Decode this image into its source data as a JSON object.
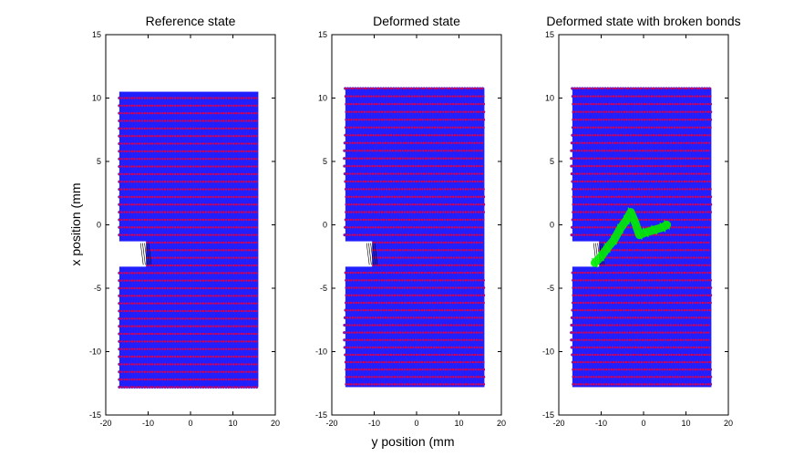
{
  "figure": {
    "xlabel": "y position (mm",
    "ylabel": "x position (mm"
  },
  "colors": {
    "node_fill": "#e0004a",
    "bond": "#2020ff",
    "broken_bond": "#00ee00",
    "crack_line": "#000000"
  },
  "chart_data": [
    {
      "type": "scatter",
      "title": "Reference state",
      "xlim": [
        -20,
        20
      ],
      "ylim": [
        -15,
        15
      ],
      "xticks": [
        -20,
        -10,
        0,
        10,
        20
      ],
      "yticks": [
        -15,
        -10,
        -5,
        0,
        5,
        10,
        15
      ],
      "grid": false,
      "series": [
        {
          "marker": "circle",
          "grid_spacing": 0.6,
          "region": {
            "y_range": [
              -16.8,
              16.0
            ],
            "x_range": [
              -12.8,
              10.5
            ]
          },
          "notch": {
            "opening_y": -17.0,
            "tip_y": -10.5,
            "x_range": [
              -3.3,
              -1.3
            ]
          }
        }
      ]
    },
    {
      "type": "scatter",
      "title": "Deformed state",
      "xlim": [
        -20,
        20
      ],
      "ylim": [
        -15,
        15
      ],
      "xticks": [
        -20,
        -10,
        0,
        10,
        20
      ],
      "yticks": [
        -15,
        -10,
        -5,
        0,
        5,
        10,
        15
      ],
      "grid": false,
      "series": [
        {
          "marker": "circle",
          "grid_spacing": 0.6,
          "region": {
            "y_range": [
              -16.8,
              16.0
            ],
            "x_range": [
              -12.8,
              10.8
            ]
          },
          "notch": {
            "opening_y": -17.0,
            "tip_y": -10.5,
            "x_range": [
              -3.3,
              -1.3
            ]
          }
        }
      ]
    },
    {
      "type": "scatter",
      "title": "Deformed state with broken bonds",
      "xlim": [
        -20,
        20
      ],
      "ylim": [
        -15,
        15
      ],
      "xticks": [
        -20,
        -10,
        0,
        10,
        20
      ],
      "yticks": [
        -15,
        -10,
        -5,
        0,
        5,
        10,
        15
      ],
      "grid": false,
      "series": [
        {
          "marker": "circle",
          "grid_spacing": 0.6,
          "region": {
            "y_range": [
              -16.8,
              16.0
            ],
            "x_range": [
              -12.8,
              10.8
            ]
          },
          "notch": {
            "opening_y": -17.0,
            "tip_y": -10.5,
            "x_range": [
              -3.3,
              -1.3
            ]
          }
        }
      ],
      "broken_bonds_path": [
        [
          -11.5,
          -3.0
        ],
        [
          -10.0,
          -2.5
        ],
        [
          -8.5,
          -1.8
        ],
        [
          -7.0,
          -1.2
        ],
        [
          -5.5,
          -0.3
        ],
        [
          -4.0,
          0.4
        ],
        [
          -3.0,
          1.0
        ],
        [
          -2.0,
          0.2
        ],
        [
          -1.0,
          -0.8
        ],
        [
          0.5,
          -0.6
        ],
        [
          2.5,
          -0.4
        ],
        [
          4.5,
          -0.2
        ],
        [
          5.5,
          0.0
        ]
      ]
    }
  ]
}
